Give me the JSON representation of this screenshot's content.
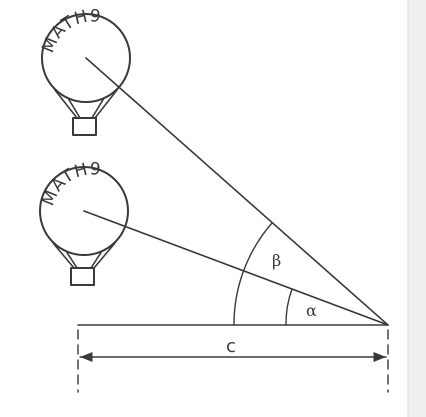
{
  "figure": {
    "balloons": [
      {
        "text": "MATH9"
      },
      {
        "text": "MATH9"
      }
    ],
    "angles": {
      "alpha": "α",
      "beta": "β"
    },
    "distance_label": "c"
  },
  "colors": {
    "ink": "#3a3a3a",
    "paper": "#ffffff",
    "edge_shadow": "#e6e6e6"
  }
}
